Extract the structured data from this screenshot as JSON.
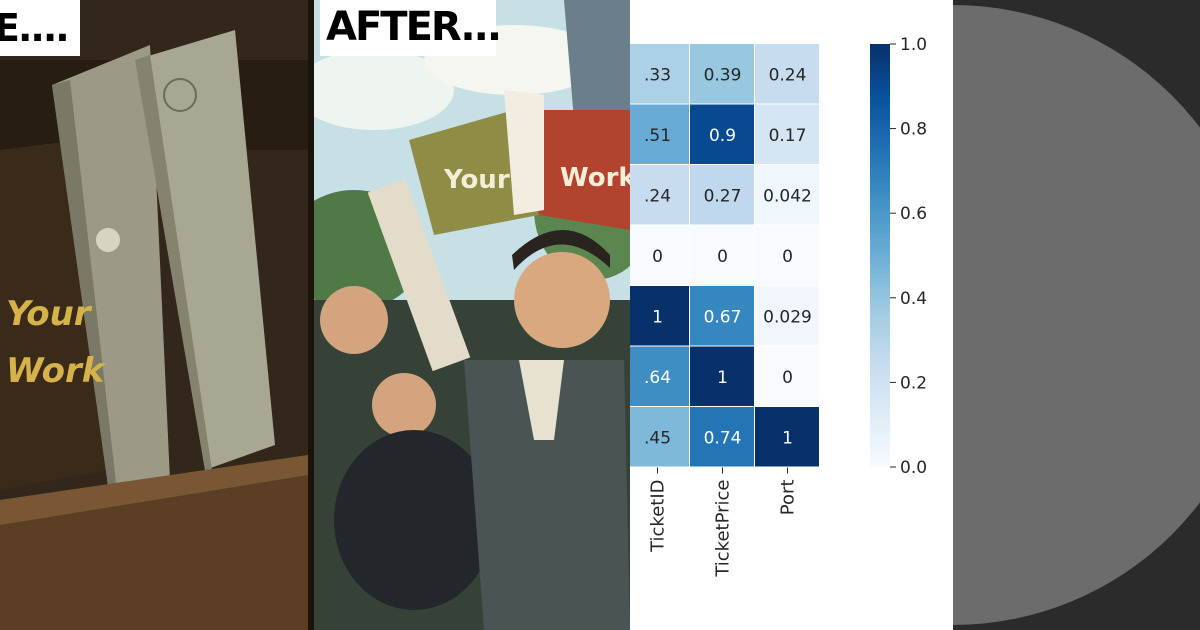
{
  "comic": {
    "before_caption": "E....",
    "after_caption": "AFTER...",
    "left_book_text_line1": "Your",
    "left_book_text_line2": "Work",
    "right_book_text_left": "Your",
    "right_book_text_right": "Work"
  },
  "chart_data": {
    "type": "heatmap",
    "title": "",
    "columns": [
      "TicketID",
      "TicketPrice",
      "Port"
    ],
    "rows": [
      [
        0.33,
        0.39,
        0.24
      ],
      [
        0.51,
        0.9,
        0.17
      ],
      [
        0.24,
        0.27,
        0.042
      ],
      [
        0,
        0,
        0
      ],
      [
        1,
        0.67,
        0.029
      ],
      [
        0.64,
        1,
        0
      ],
      [
        0.45,
        0.74,
        1
      ]
    ],
    "cell_labels": [
      [
        ".33",
        "0.39",
        "0.24"
      ],
      [
        ".51",
        "0.9",
        "0.17"
      ],
      [
        ".24",
        "0.27",
        "0.042"
      ],
      [
        "0",
        "0",
        "0"
      ],
      [
        "1",
        "0.67",
        "0.029"
      ],
      [
        ".64",
        "1",
        "0"
      ],
      [
        ".45",
        "0.74",
        "1"
      ]
    ],
    "colormap": "Blues",
    "colorbar": {
      "min": 0.0,
      "max": 1.0,
      "ticks": [
        "0.0",
        "0.2",
        "0.4",
        "0.6",
        "0.8",
        "1.0"
      ]
    }
  }
}
